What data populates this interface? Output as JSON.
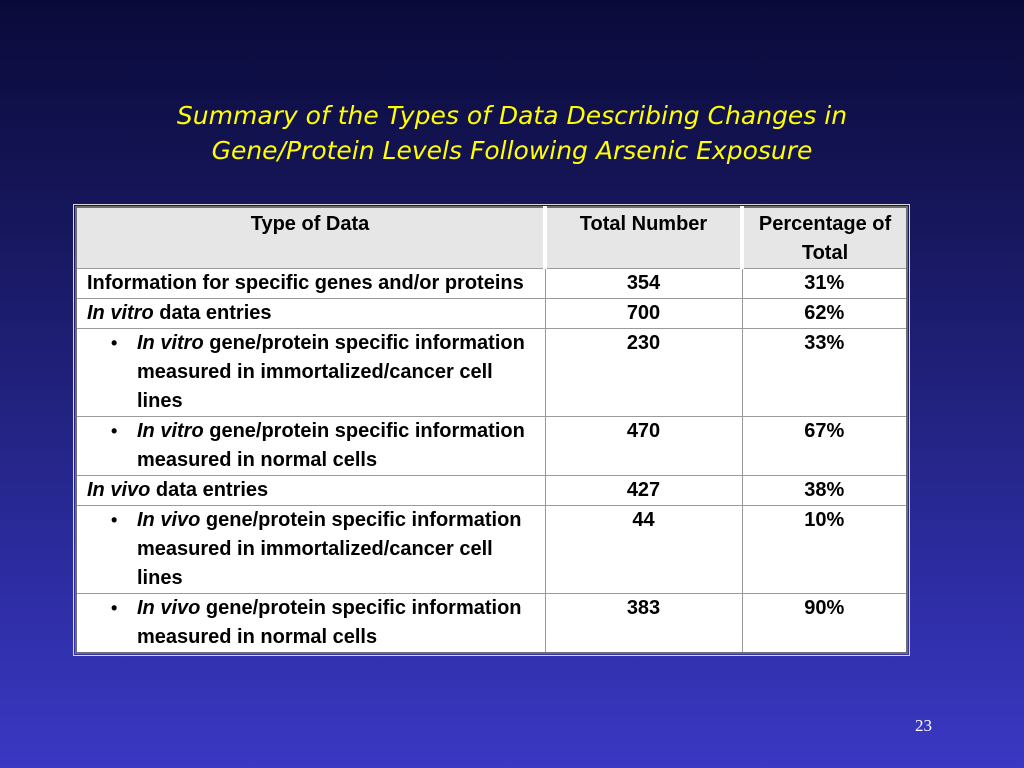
{
  "slide": {
    "title_line1": "Summary of the Types of Data Describing Changes in",
    "title_line2": "Gene/Protein Levels Following Arsenic Exposure",
    "page_number": "23"
  },
  "table": {
    "headers": {
      "type": "Type of Data",
      "total": "Total Number",
      "percent": "Percentage of Total"
    },
    "rows": [
      {
        "label": "Information for specific genes and/or proteins",
        "total": "354",
        "percent": "31%"
      },
      {
        "label_italic": "In vitro",
        "label_rest": " data entries",
        "total": "700",
        "percent": "62%"
      },
      {
        "bullet": "•",
        "label_italic": "In vitro",
        "label_rest": " gene/protein specific information measured in immortalized/cancer cell lines",
        "total": "230",
        "percent": "33%"
      },
      {
        "bullet": "•",
        "label_italic": "In vitro",
        "label_rest": " gene/protein specific information measured in normal cells",
        "total": "470",
        "percent": "67%"
      },
      {
        "label_italic": "In vivo",
        "label_rest": " data entries",
        "total": "427",
        "percent": "38%"
      },
      {
        "bullet": "•",
        "label_italic": "In vivo",
        "label_rest": " gene/protein specific information measured in immortalized/cancer cell lines",
        "total": "44",
        "percent": "10%"
      },
      {
        "bullet": "•",
        "label_italic": "In vivo",
        "label_rest": " gene/protein specific information measured in normal cells",
        "total": "383",
        "percent": "90%"
      }
    ]
  }
}
